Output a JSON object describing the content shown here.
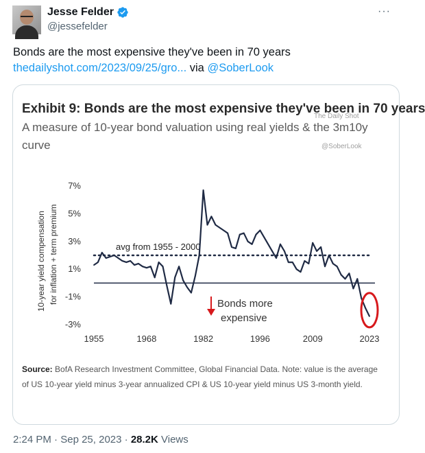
{
  "author": {
    "name": "Jesse Felder",
    "handle": "@jessefelder"
  },
  "tweet": {
    "text": "Bonds are the most expensive they've been in 70 years",
    "link": "thedailyshot.com/2023/09/25/gro...",
    "via": "via",
    "mention": "@SoberLook"
  },
  "card": {
    "title": "Exhibit 9: Bonds are the most expensive they've been in 70 years",
    "subtitle_line1": "A measure of 10-year bond valuation using real yields & the 3m10y",
    "subtitle_line2": "curve",
    "watermark1": "The Daily Shot",
    "watermark2": "@SoberLook",
    "source_label": "Source:",
    "source_text": "BofA Research Investment Committee, Global Financial Data. Note: value is the average of US 10-year yield minus 3-year annualized CPI & US 10-year yield minus US 3-month yield."
  },
  "chart_data": {
    "type": "line",
    "title": "Exhibit 9: Bonds are the most expensive they've been in 70 years",
    "subtitle": "A measure of 10-year bond valuation using real yields & the 3m10y curve",
    "xlabel": "",
    "ylabel": "10-year yield compensation for inflation + term premium",
    "x_ticks": [
      "1955",
      "1968",
      "1982",
      "1996",
      "2009",
      "2023"
    ],
    "y_ticks": [
      "7%",
      "5%",
      "3%",
      "1%",
      "-1%",
      "-3%"
    ],
    "xlim": [
      1955,
      2023
    ],
    "ylim": [
      -3,
      7
    ],
    "reference_lines": [
      {
        "label": "avg from 1955 - 2000",
        "value": 2.0,
        "style": "dotted"
      },
      {
        "label": "",
        "value": 0,
        "style": "solid"
      }
    ],
    "annotation": "Bonds more expensive",
    "series": [
      {
        "x": [
          1955,
          1956,
          1957,
          1958,
          1959,
          1960,
          1961,
          1962,
          1963,
          1964,
          1965,
          1966,
          1967,
          1968,
          1969,
          1970,
          1971,
          1972,
          1973,
          1974,
          1975,
          1976,
          1977,
          1978,
          1979,
          1980,
          1981,
          1982,
          1983,
          1984,
          1985,
          1986,
          1987,
          1988,
          1989,
          1990,
          1991,
          1992,
          1993,
          1994,
          1995,
          1996,
          1997,
          1998,
          1999,
          2000,
          2001,
          2002,
          2003,
          2004,
          2005,
          2006,
          2007,
          2008,
          2009,
          2010,
          2011,
          2012,
          2013,
          2014,
          2015,
          2016,
          2017,
          2018,
          2019,
          2020,
          2021,
          2022,
          2023
        ],
        "values": [
          1.3,
          1.5,
          2.2,
          1.8,
          1.9,
          2.0,
          1.8,
          1.6,
          1.5,
          1.6,
          1.3,
          1.4,
          1.2,
          1.1,
          1.2,
          0.4,
          1.5,
          1.2,
          -0.2,
          -1.5,
          0.4,
          1.2,
          0.2,
          -0.3,
          -0.7,
          0.5,
          2.0,
          6.7,
          4.2,
          4.8,
          4.2,
          4.0,
          3.8,
          3.6,
          2.6,
          2.5,
          3.5,
          3.6,
          3.0,
          2.8,
          3.5,
          3.8,
          3.3,
          2.8,
          2.3,
          1.8,
          2.8,
          2.3,
          1.5,
          1.5,
          1.0,
          0.8,
          1.6,
          1.4,
          2.9,
          2.3,
          2.6,
          1.2,
          2.0,
          1.4,
          1.2,
          0.6,
          0.3,
          0.7,
          -0.4,
          0.3,
          -1.1,
          -1.8,
          -2.4
        ]
      }
    ],
    "grid": false,
    "legend": "none"
  },
  "footer": {
    "time": "2:24 PM",
    "sep1": "·",
    "date": "Sep 25, 2023",
    "sep2": "·",
    "views_count": "28.2K",
    "views_label": "Views"
  },
  "colors": {
    "accent": "#1d9bf0",
    "series": "#1f2a44",
    "highlight": "#d7191c"
  },
  "icons": [
    "verified-badge-icon",
    "more-options-icon",
    "down-arrow-icon"
  ]
}
